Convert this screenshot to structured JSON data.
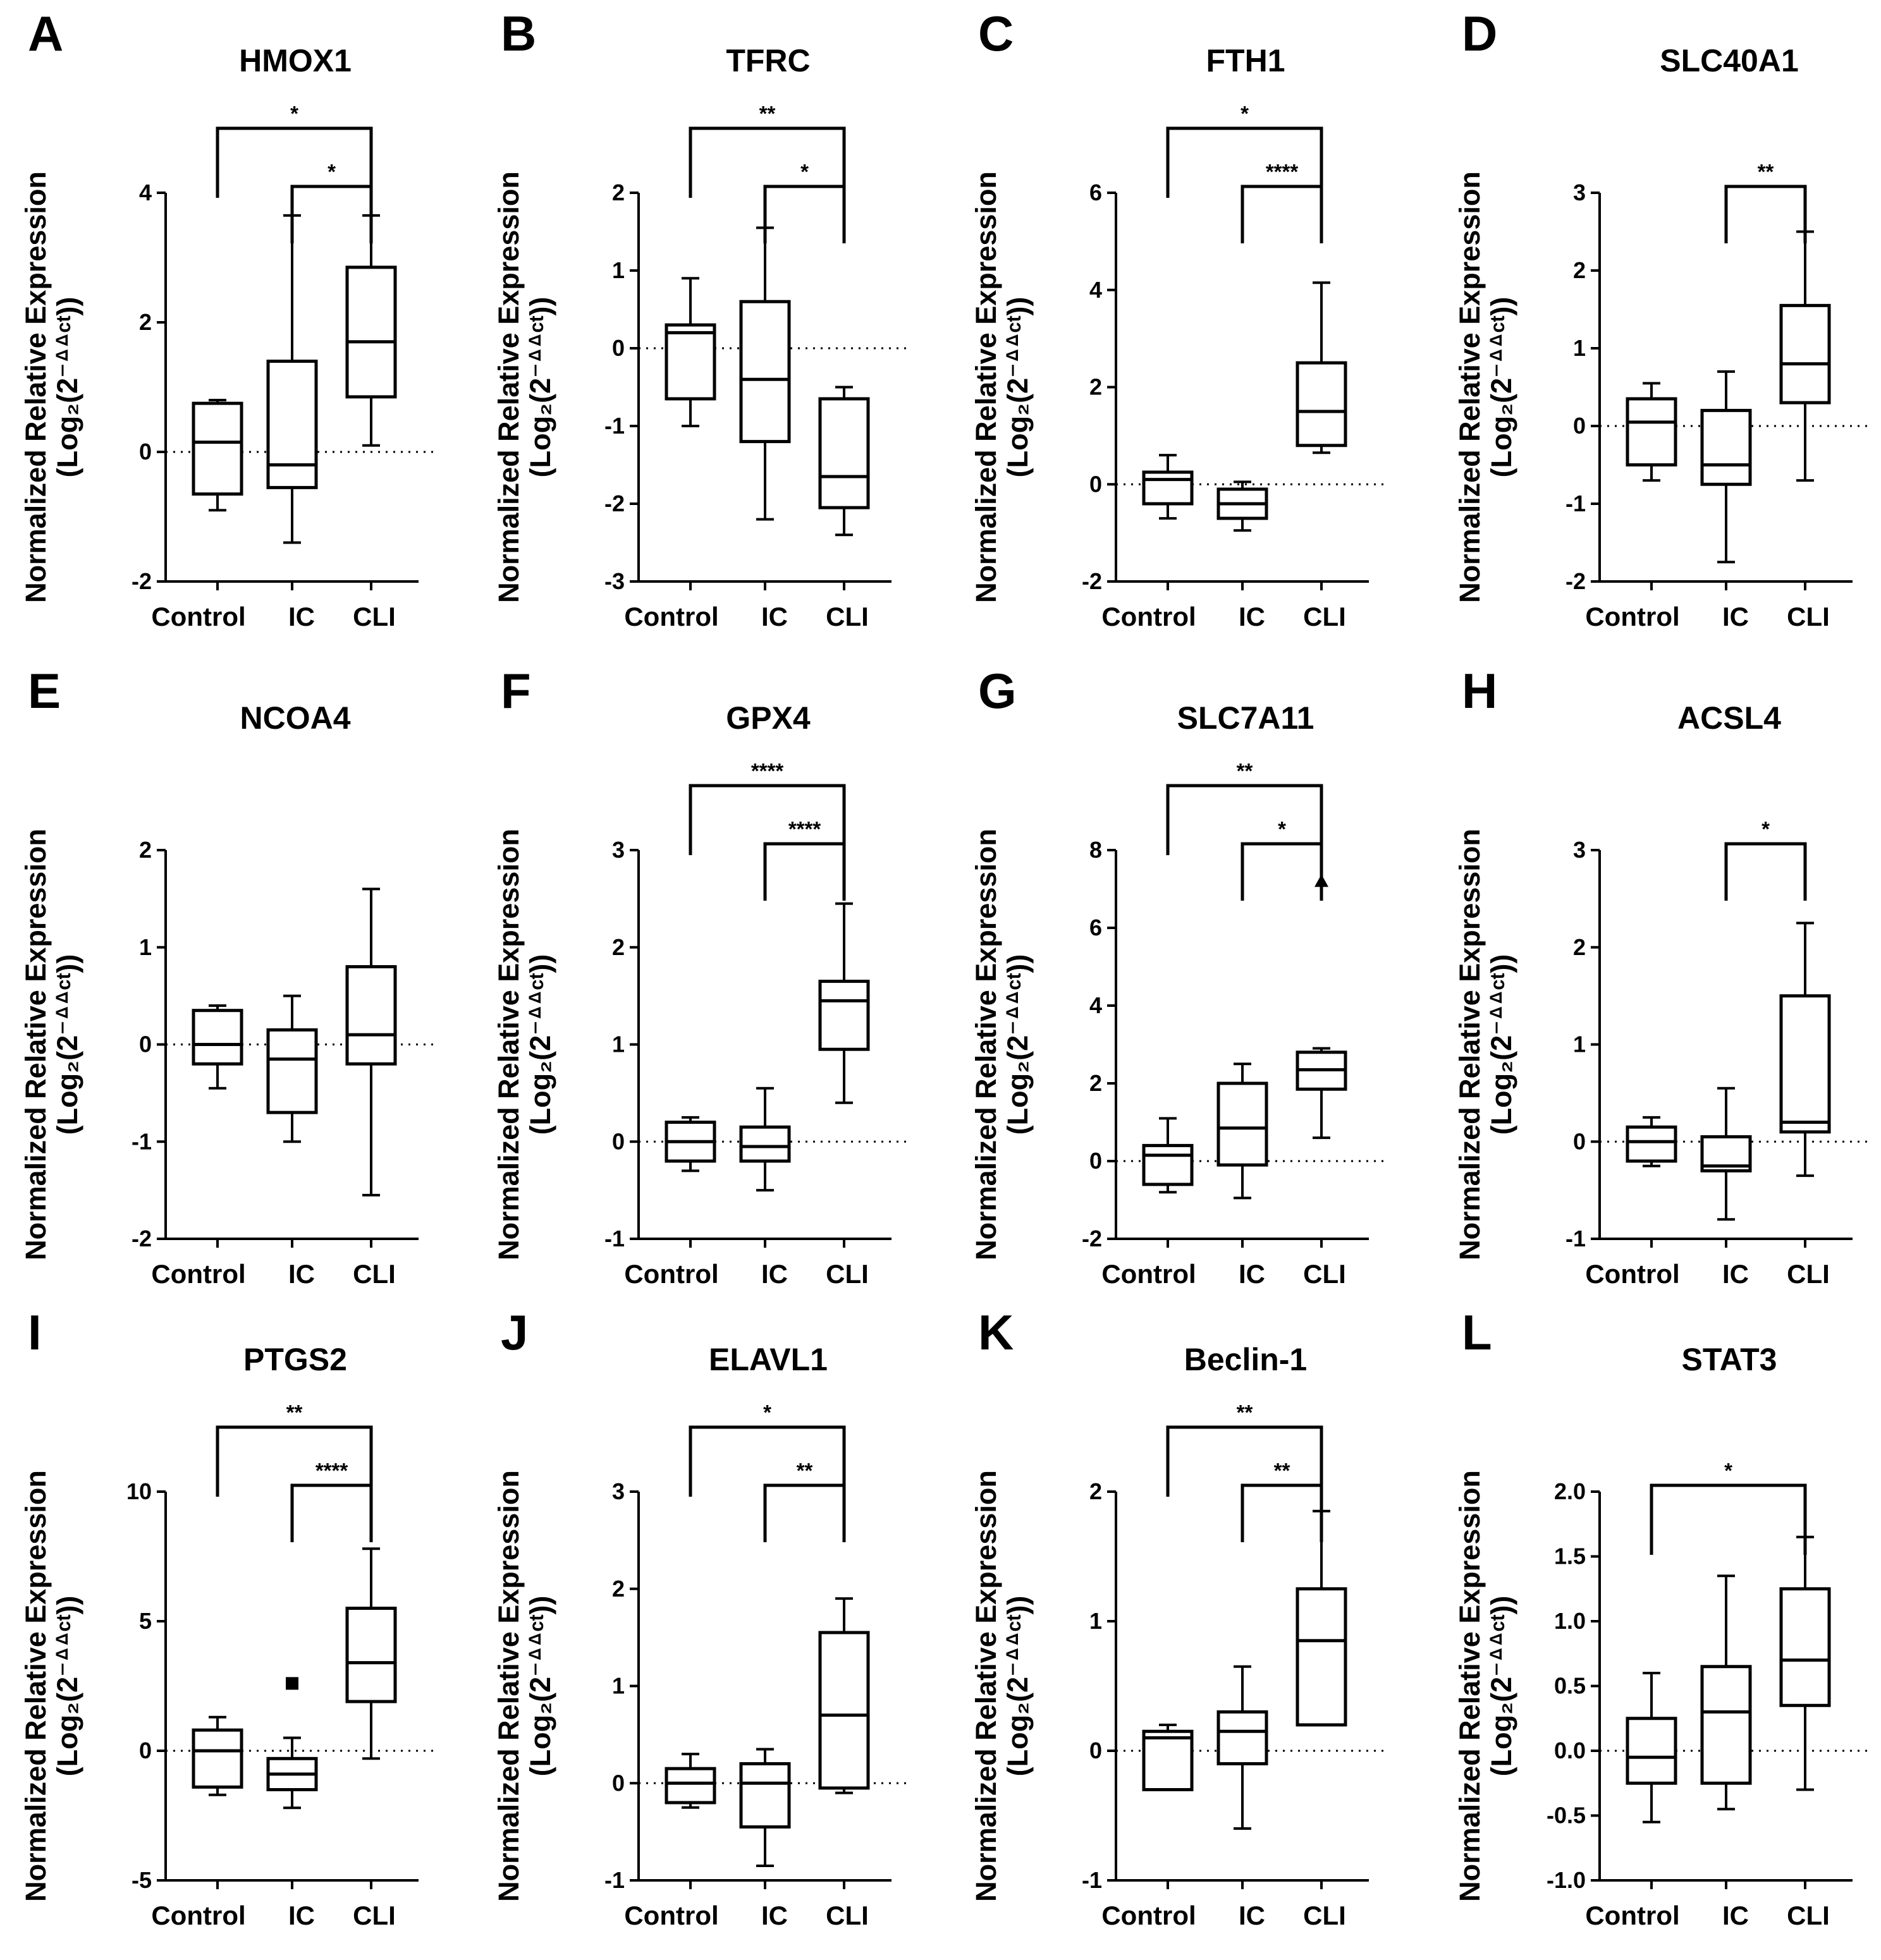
{
  "figure": {
    "ylabel_line1": "Normalized Relative Expression",
    "ylabel_line2": "(Log₂(2⁻ᐞᐞᶜᵗ))",
    "categories": [
      "Control",
      "IC",
      "CLI"
    ]
  },
  "chart_data": [
    {
      "letter": "A",
      "title": "HMOX1",
      "type": "box",
      "ylim": [
        -2,
        4
      ],
      "yticks": [
        -2,
        0,
        2,
        4
      ],
      "ticklabels": [
        "-2",
        "0",
        "2",
        "4"
      ],
      "boxes": [
        {
          "min": -0.9,
          "q1": -0.65,
          "median": 0.15,
          "q3": 0.75,
          "max": 0.8
        },
        {
          "min": -1.4,
          "q1": -0.55,
          "median": -0.2,
          "q3": 1.4,
          "max": 3.65
        },
        {
          "min": 0.1,
          "q1": 0.85,
          "median": 1.7,
          "q3": 2.85,
          "max": 3.65
        }
      ],
      "outliers": [],
      "brackets": [
        {
          "from": 0,
          "to": 2,
          "label": "*"
        },
        {
          "from": 1,
          "to": 2,
          "label": "*"
        }
      ]
    },
    {
      "letter": "B",
      "title": "TFRC",
      "type": "box",
      "ylim": [
        -3,
        2
      ],
      "yticks": [
        -3,
        -2,
        -1,
        0,
        1,
        2
      ],
      "ticklabels": [
        "-3",
        "-2",
        "-1",
        "0",
        "1",
        "2"
      ],
      "boxes": [
        {
          "min": -1.0,
          "q1": -0.65,
          "median": 0.2,
          "q3": 0.3,
          "max": 0.9
        },
        {
          "min": -2.2,
          "q1": -1.2,
          "median": -0.4,
          "q3": 0.6,
          "max": 1.55
        },
        {
          "min": -2.4,
          "q1": -2.05,
          "median": -1.65,
          "q3": -0.65,
          "max": -0.5
        }
      ],
      "outliers": [],
      "brackets": [
        {
          "from": 0,
          "to": 2,
          "label": "**"
        },
        {
          "from": 1,
          "to": 2,
          "label": "*"
        }
      ]
    },
    {
      "letter": "C",
      "title": "FTH1",
      "type": "box",
      "ylim": [
        -2,
        6
      ],
      "yticks": [
        -2,
        0,
        2,
        4,
        6
      ],
      "ticklabels": [
        "-2",
        "0",
        "2",
        "4",
        "6"
      ],
      "boxes": [
        {
          "min": -0.7,
          "q1": -0.4,
          "median": 0.1,
          "q3": 0.25,
          "max": 0.6
        },
        {
          "min": -0.95,
          "q1": -0.7,
          "median": -0.4,
          "q3": -0.1,
          "max": 0.05
        },
        {
          "min": 0.65,
          "q1": 0.8,
          "median": 1.5,
          "q3": 2.5,
          "max": 4.15
        }
      ],
      "outliers": [],
      "brackets": [
        {
          "from": 0,
          "to": 2,
          "label": "*"
        },
        {
          "from": 1,
          "to": 2,
          "label": "****"
        }
      ]
    },
    {
      "letter": "D",
      "title": "SLC40A1",
      "type": "box",
      "ylim": [
        -2,
        3
      ],
      "yticks": [
        -2,
        -1,
        0,
        1,
        2,
        3
      ],
      "ticklabels": [
        "-2",
        "-1",
        "0",
        "1",
        "2",
        "3"
      ],
      "boxes": [
        {
          "min": -0.7,
          "q1": -0.5,
          "median": 0.05,
          "q3": 0.35,
          "max": 0.55
        },
        {
          "min": -1.75,
          "q1": -0.75,
          "median": -0.5,
          "q3": 0.2,
          "max": 0.7
        },
        {
          "min": -0.7,
          "q1": 0.3,
          "median": 0.8,
          "q3": 1.55,
          "max": 2.5
        }
      ],
      "outliers": [],
      "brackets": [
        {
          "from": 1,
          "to": 2,
          "label": "**"
        }
      ]
    },
    {
      "letter": "E",
      "title": "NCOA4",
      "type": "box",
      "ylim": [
        -2,
        2
      ],
      "yticks": [
        -2,
        -1,
        0,
        1,
        2
      ],
      "ticklabels": [
        "-2",
        "-1",
        "0",
        "1",
        "2"
      ],
      "boxes": [
        {
          "min": -0.45,
          "q1": -0.2,
          "median": 0.0,
          "q3": 0.35,
          "max": 0.4
        },
        {
          "min": -1.0,
          "q1": -0.7,
          "median": -0.15,
          "q3": 0.15,
          "max": 0.5
        },
        {
          "min": -1.55,
          "q1": -0.2,
          "median": 0.1,
          "q3": 0.8,
          "max": 1.6
        }
      ],
      "outliers": [],
      "brackets": []
    },
    {
      "letter": "F",
      "title": "GPX4",
      "type": "box",
      "ylim": [
        -1,
        3
      ],
      "yticks": [
        -1,
        0,
        1,
        2,
        3
      ],
      "ticklabels": [
        "-1",
        "0",
        "1",
        "2",
        "3"
      ],
      "boxes": [
        {
          "min": -0.3,
          "q1": -0.2,
          "median": 0.0,
          "q3": 0.2,
          "max": 0.25
        },
        {
          "min": -0.5,
          "q1": -0.2,
          "median": -0.05,
          "q3": 0.15,
          "max": 0.55
        },
        {
          "min": 0.4,
          "q1": 0.95,
          "median": 1.45,
          "q3": 1.65,
          "max": 2.45
        }
      ],
      "outliers": [],
      "brackets": [
        {
          "from": 0,
          "to": 2,
          "label": "****"
        },
        {
          "from": 1,
          "to": 2,
          "label": "****"
        }
      ]
    },
    {
      "letter": "G",
      "title": "SLC7A11",
      "type": "box",
      "ylim": [
        -2,
        8
      ],
      "yticks": [
        -2,
        0,
        2,
        4,
        6,
        8
      ],
      "ticklabels": [
        "-2",
        "0",
        "2",
        "4",
        "6",
        "8"
      ],
      "boxes": [
        {
          "min": -0.8,
          "q1": -0.6,
          "median": 0.15,
          "q3": 0.4,
          "max": 1.1
        },
        {
          "min": -0.95,
          "q1": -0.1,
          "median": 0.85,
          "q3": 2.0,
          "max": 2.5
        },
        {
          "min": 0.6,
          "q1": 1.85,
          "median": 2.35,
          "q3": 2.8,
          "max": 2.9
        }
      ],
      "outliers": [
        {
          "group": 2,
          "value": 7.2,
          "shape": "triangle"
        }
      ],
      "brackets": [
        {
          "from": 0,
          "to": 2,
          "label": "**"
        },
        {
          "from": 1,
          "to": 2,
          "label": "*"
        }
      ]
    },
    {
      "letter": "H",
      "title": "ACSL4",
      "type": "box",
      "ylim": [
        -1,
        3
      ],
      "yticks": [
        -1,
        0,
        1,
        2,
        3
      ],
      "ticklabels": [
        "-1",
        "0",
        "1",
        "2",
        "3"
      ],
      "boxes": [
        {
          "min": -0.25,
          "q1": -0.2,
          "median": 0.0,
          "q3": 0.15,
          "max": 0.25
        },
        {
          "min": -0.8,
          "q1": -0.3,
          "median": -0.25,
          "q3": 0.05,
          "max": 0.55
        },
        {
          "min": -0.35,
          "q1": 0.1,
          "median": 0.2,
          "q3": 1.5,
          "max": 2.25
        }
      ],
      "outliers": [],
      "brackets": [
        {
          "from": 1,
          "to": 2,
          "label": "*"
        }
      ]
    },
    {
      "letter": "I",
      "title": "PTGS2",
      "type": "box",
      "ylim": [
        -5,
        10
      ],
      "yticks": [
        -5,
        0,
        5,
        10
      ],
      "ticklabels": [
        "-5",
        "0",
        "5",
        "10"
      ],
      "boxes": [
        {
          "min": -1.7,
          "q1": -1.4,
          "median": 0.0,
          "q3": 0.8,
          "max": 1.3
        },
        {
          "min": -2.2,
          "q1": -1.5,
          "median": -0.9,
          "q3": -0.3,
          "max": 0.5
        },
        {
          "min": -0.3,
          "q1": 1.9,
          "median": 3.4,
          "q3": 5.5,
          "max": 7.8
        }
      ],
      "outliers": [
        {
          "group": 1,
          "value": 2.6,
          "shape": "square"
        }
      ],
      "brackets": [
        {
          "from": 0,
          "to": 2,
          "label": "**"
        },
        {
          "from": 1,
          "to": 2,
          "label": "****"
        }
      ]
    },
    {
      "letter": "J",
      "title": "ELAVL1",
      "type": "box",
      "ylim": [
        -1,
        3
      ],
      "yticks": [
        -1,
        0,
        1,
        2,
        3
      ],
      "ticklabels": [
        "-1",
        "0",
        "1",
        "2",
        "3"
      ],
      "boxes": [
        {
          "min": -0.25,
          "q1": -0.2,
          "median": 0.0,
          "q3": 0.15,
          "max": 0.3
        },
        {
          "min": -0.85,
          "q1": -0.45,
          "median": 0.0,
          "q3": 0.2,
          "max": 0.35
        },
        {
          "min": -0.1,
          "q1": -0.05,
          "median": 0.7,
          "q3": 1.55,
          "max": 1.9
        }
      ],
      "outliers": [],
      "brackets": [
        {
          "from": 0,
          "to": 2,
          "label": "*"
        },
        {
          "from": 1,
          "to": 2,
          "label": "**"
        }
      ]
    },
    {
      "letter": "K",
      "title": "Beclin-1",
      "type": "box",
      "ylim": [
        -1,
        2
      ],
      "yticks": [
        -1,
        0,
        1,
        2
      ],
      "ticklabels": [
        "-1",
        "0",
        "1",
        "2"
      ],
      "boxes": [
        {
          "min": -0.3,
          "q1": -0.3,
          "median": 0.1,
          "q3": 0.15,
          "max": 0.2
        },
        {
          "min": -0.6,
          "q1": -0.1,
          "median": 0.15,
          "q3": 0.3,
          "max": 0.65
        },
        {
          "min": 0.2,
          "q1": 0.2,
          "median": 0.85,
          "q3": 1.25,
          "max": 1.85
        }
      ],
      "outliers": [],
      "brackets": [
        {
          "from": 0,
          "to": 2,
          "label": "**"
        },
        {
          "from": 1,
          "to": 2,
          "label": "**"
        }
      ]
    },
    {
      "letter": "L",
      "title": "STAT3",
      "type": "box",
      "ylim": [
        -1,
        2
      ],
      "yticks": [
        -1,
        -0.5,
        0,
        0.5,
        1,
        1.5,
        2
      ],
      "ticklabels": [
        "-1.0",
        "-0.5",
        "0.0",
        "0.5",
        "1.0",
        "1.5",
        "2.0"
      ],
      "boxes": [
        {
          "min": -0.55,
          "q1": -0.25,
          "median": -0.05,
          "q3": 0.25,
          "max": 0.6
        },
        {
          "min": -0.45,
          "q1": -0.25,
          "median": 0.3,
          "q3": 0.65,
          "max": 1.35
        },
        {
          "min": -0.3,
          "q1": 0.35,
          "median": 0.7,
          "q3": 1.25,
          "max": 1.65
        }
      ],
      "outliers": [],
      "brackets": [
        {
          "from": 0,
          "to": 2,
          "label": "*"
        }
      ]
    }
  ]
}
